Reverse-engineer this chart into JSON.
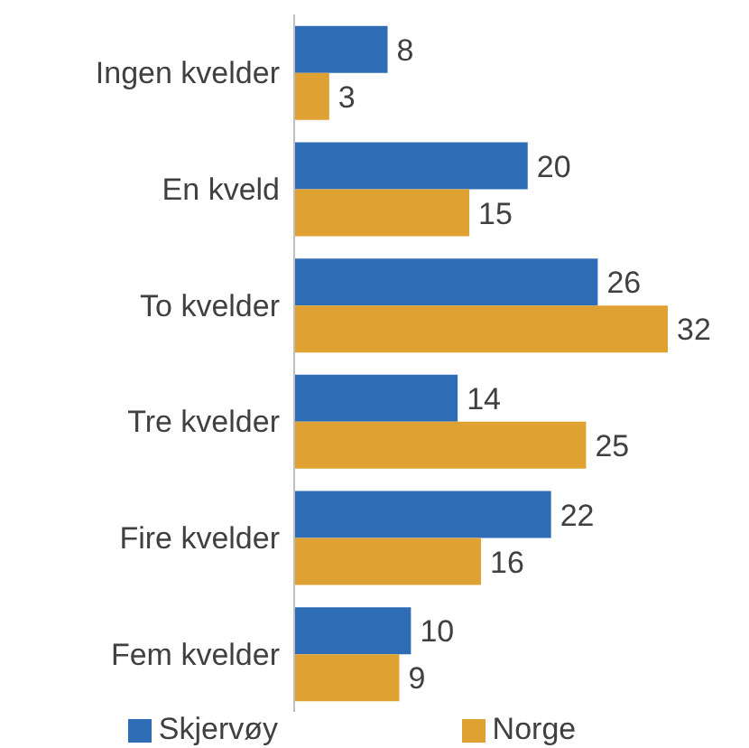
{
  "chart_data": {
    "type": "bar",
    "orientation": "horizontal",
    "data_labels": true,
    "legend": "bottom",
    "grid": false,
    "categories": [
      "Ingen kvelder",
      "En kveld",
      "To kvelder",
      "Tre kvelder",
      "Fire kvelder",
      "Fem kvelder"
    ],
    "series": [
      {
        "name": "Skjervøy",
        "color": "#2e6db5",
        "values": [
          8,
          20,
          26,
          14,
          22,
          10
        ]
      },
      {
        "name": "Norge",
        "color": "#e0a133",
        "values": [
          3,
          15,
          32,
          25,
          16,
          9
        ]
      }
    ]
  }
}
